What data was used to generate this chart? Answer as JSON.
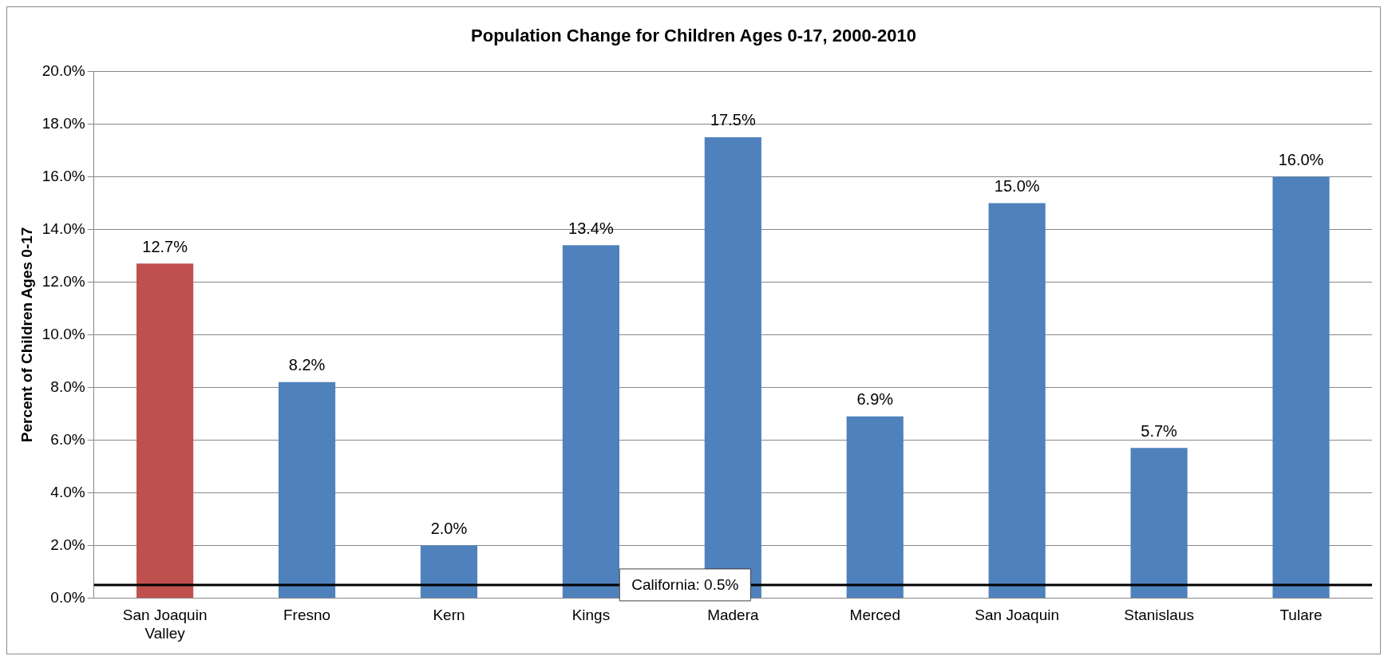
{
  "chart_data": {
    "type": "bar",
    "title": "Population Change for Children Ages 0-17, 2000-2010",
    "ylabel": "Percent of Children Ages 0-17",
    "categories": [
      "San Joaquin Valley",
      "Fresno",
      "Kern",
      "Kings",
      "Madera",
      "Merced",
      "San Joaquin",
      "Stanislaus",
      "Tulare"
    ],
    "values": [
      12.7,
      8.2,
      2.0,
      13.4,
      17.5,
      6.9,
      15.0,
      5.7,
      16.0
    ],
    "colors": [
      "#c0504d",
      "#4f81bd",
      "#4f81bd",
      "#4f81bd",
      "#4f81bd",
      "#4f81bd",
      "#4f81bd",
      "#4f81bd",
      "#4f81bd"
    ],
    "value_labels": [
      "12.7%",
      "8.2%",
      "2.0%",
      "13.4%",
      "17.5%",
      "6.9%",
      "15.0%",
      "5.7%",
      "16.0%"
    ],
    "ylim": [
      0,
      20
    ],
    "yticks": [
      {
        "value": 0,
        "label": "0.0%"
      },
      {
        "value": 2,
        "label": "2.0%"
      },
      {
        "value": 4,
        "label": "4.0%"
      },
      {
        "value": 6,
        "label": "6.0%"
      },
      {
        "value": 8,
        "label": "8.0%"
      },
      {
        "value": 10,
        "label": "10.0%"
      },
      {
        "value": 12,
        "label": "12.0%"
      },
      {
        "value": 14,
        "label": "14.0%"
      },
      {
        "value": 16,
        "label": "16.0%"
      },
      {
        "value": 18,
        "label": "18.0%"
      },
      {
        "value": 20,
        "label": "20.0%"
      }
    ],
    "ref_lines": [
      {
        "axis": "y",
        "value": 0.5,
        "label": "California: 0.5%",
        "color": "#000000"
      }
    ],
    "grid": "y",
    "legend": false
  }
}
